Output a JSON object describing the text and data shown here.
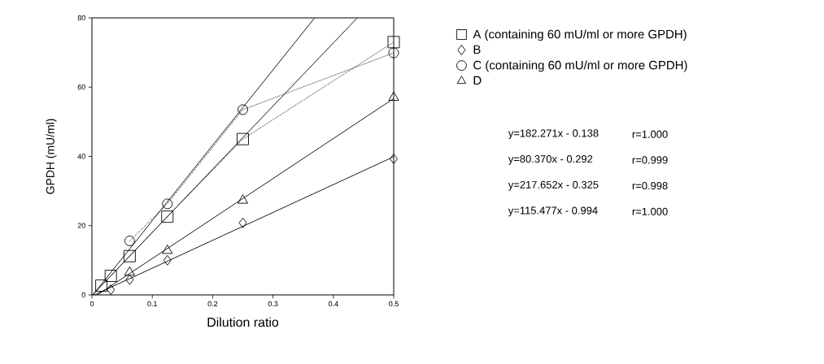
{
  "chart_data": {
    "type": "line",
    "xlabel": "Dilution ratio",
    "ylabel": "GPDH (mU/ml)",
    "x": [
      0.015625,
      0.03125,
      0.0625,
      0.125,
      0.25,
      0.5
    ],
    "xlim": [
      0,
      0.5
    ],
    "ylim": [
      0,
      80
    ],
    "xticks": [
      0,
      0.1,
      0.2,
      0.3,
      0.4,
      0.5
    ],
    "yticks": [
      0,
      20,
      40,
      60,
      80
    ],
    "legend": "right",
    "series": [
      {
        "name": "A (containing 60 mU/ml or more GPDH)",
        "color": "#000000",
        "line_style": "dotted",
        "marker": "square",
        "values": [
          2.7,
          5.5,
          11.2,
          22.6,
          45.0,
          73.0
        ]
      },
      {
        "name": "B",
        "color": "#000000",
        "type": "scatter",
        "marker": "diamond",
        "values": [
          null,
          1.5,
          4.4,
          10.0,
          20.8,
          39.3
        ]
      },
      {
        "name": "C (containing 60 mU/ml or more GPDH)",
        "color": "#000000",
        "line_style": "dotted",
        "marker": "circle",
        "values": [
          null,
          null,
          15.6,
          26.3,
          53.5,
          69.9
        ]
      },
      {
        "name": "D",
        "color": "#000000",
        "type": "scatter",
        "marker": "triangle",
        "values": [
          null,
          null,
          6.5,
          12.8,
          27.3,
          57.0
        ]
      },
      {
        "color": "#000000",
        "type": "line",
        "line_style": "solid",
        "marker": "none",
        "x": [
          0.001,
          0.4397
        ],
        "values": [
          0,
          80
        ]
      },
      {
        "color": "#000000",
        "type": "line",
        "line_style": "solid",
        "marker": "none",
        "x": [
          0.004,
          0.5
        ],
        "values": [
          0,
          39.9
        ]
      },
      {
        "color": "#000000",
        "type": "line",
        "line_style": "solid",
        "marker": "none",
        "x": [
          0.0015,
          0.369
        ],
        "values": [
          0,
          80
        ]
      },
      {
        "color": "#000000",
        "type": "line",
        "line_style": "solid",
        "marker": "none",
        "x": [
          0.009,
          0.5
        ],
        "values": [
          0,
          56.7
        ]
      }
    ],
    "annotations": [
      "y=182.271x - 0.138",
      "r=1.000",
      "y=80.370x - 0.292",
      "r=0.999",
      "y=217.652x - 0.325",
      "r=0.998",
      "y=115.477x - 0.994",
      "r=1.000"
    ]
  }
}
